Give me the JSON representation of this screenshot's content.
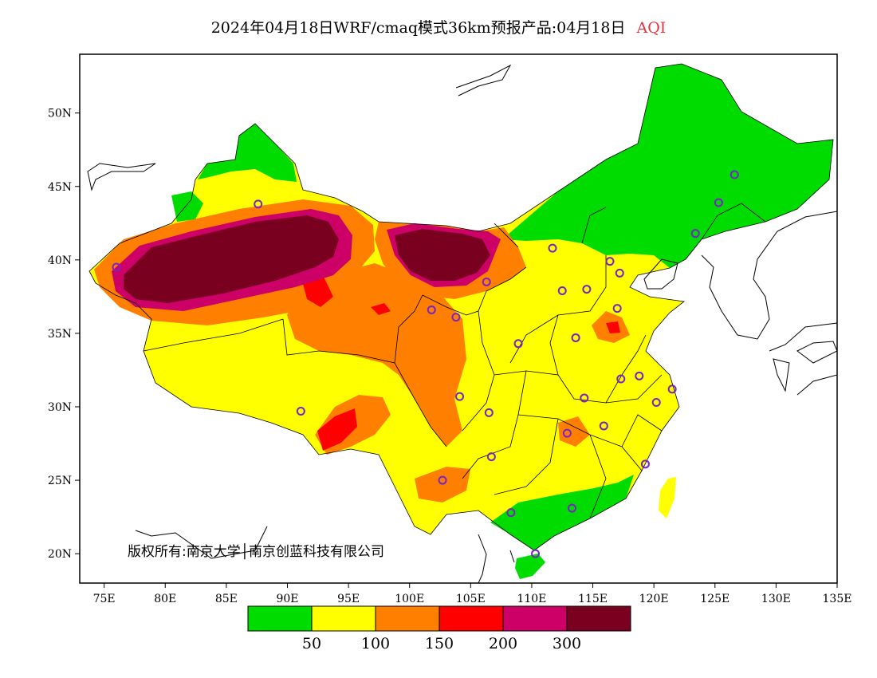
{
  "title": {
    "text": "2024年04月18日WRF/cmaq模式36km预报产品:04月18日",
    "variable": "AQI"
  },
  "axes": {
    "lon_ticks": [
      "75E",
      "80E",
      "85E",
      "90E",
      "95E",
      "100E",
      "105E",
      "110E",
      "115E",
      "120E",
      "125E",
      "130E",
      "135E"
    ],
    "lat_ticks": [
      "20N",
      "25N",
      "30N",
      "35N",
      "40N",
      "45N",
      "50N"
    ]
  },
  "legend": {
    "colors": [
      "#00dc00",
      "#ffff00",
      "#ff8000",
      "#ff0000",
      "#cc0066",
      "#7a0020"
    ],
    "labels": [
      "50",
      "100",
      "150",
      "200",
      "300"
    ]
  },
  "copyright": "版权所有:南京大学│南京创蓝科技有限公司",
  "stations": [
    [
      87.6,
      43.8
    ],
    [
      76.0,
      39.5
    ],
    [
      91.1,
      29.7
    ],
    [
      101.8,
      36.6
    ],
    [
      103.8,
      36.1
    ],
    [
      106.3,
      38.5
    ],
    [
      111.7,
      40.8
    ],
    [
      112.5,
      37.9
    ],
    [
      114.5,
      38.0
    ],
    [
      116.4,
      39.9
    ],
    [
      117.2,
      39.1
    ],
    [
      117.0,
      36.7
    ],
    [
      113.6,
      34.7
    ],
    [
      108.9,
      34.3
    ],
    [
      104.1,
      30.7
    ],
    [
      106.5,
      29.6
    ],
    [
      106.7,
      26.6
    ],
    [
      102.7,
      25.0
    ],
    [
      108.3,
      22.8
    ],
    [
      110.3,
      20.0
    ],
    [
      113.3,
      23.1
    ],
    [
      112.9,
      28.2
    ],
    [
      115.9,
      28.7
    ],
    [
      114.3,
      30.6
    ],
    [
      117.3,
      31.9
    ],
    [
      118.8,
      32.1
    ],
    [
      120.2,
      30.3
    ],
    [
      121.5,
      31.2
    ],
    [
      119.3,
      26.1
    ],
    [
      123.4,
      41.8
    ],
    [
      125.3,
      43.9
    ],
    [
      126.6,
      45.8
    ]
  ]
}
